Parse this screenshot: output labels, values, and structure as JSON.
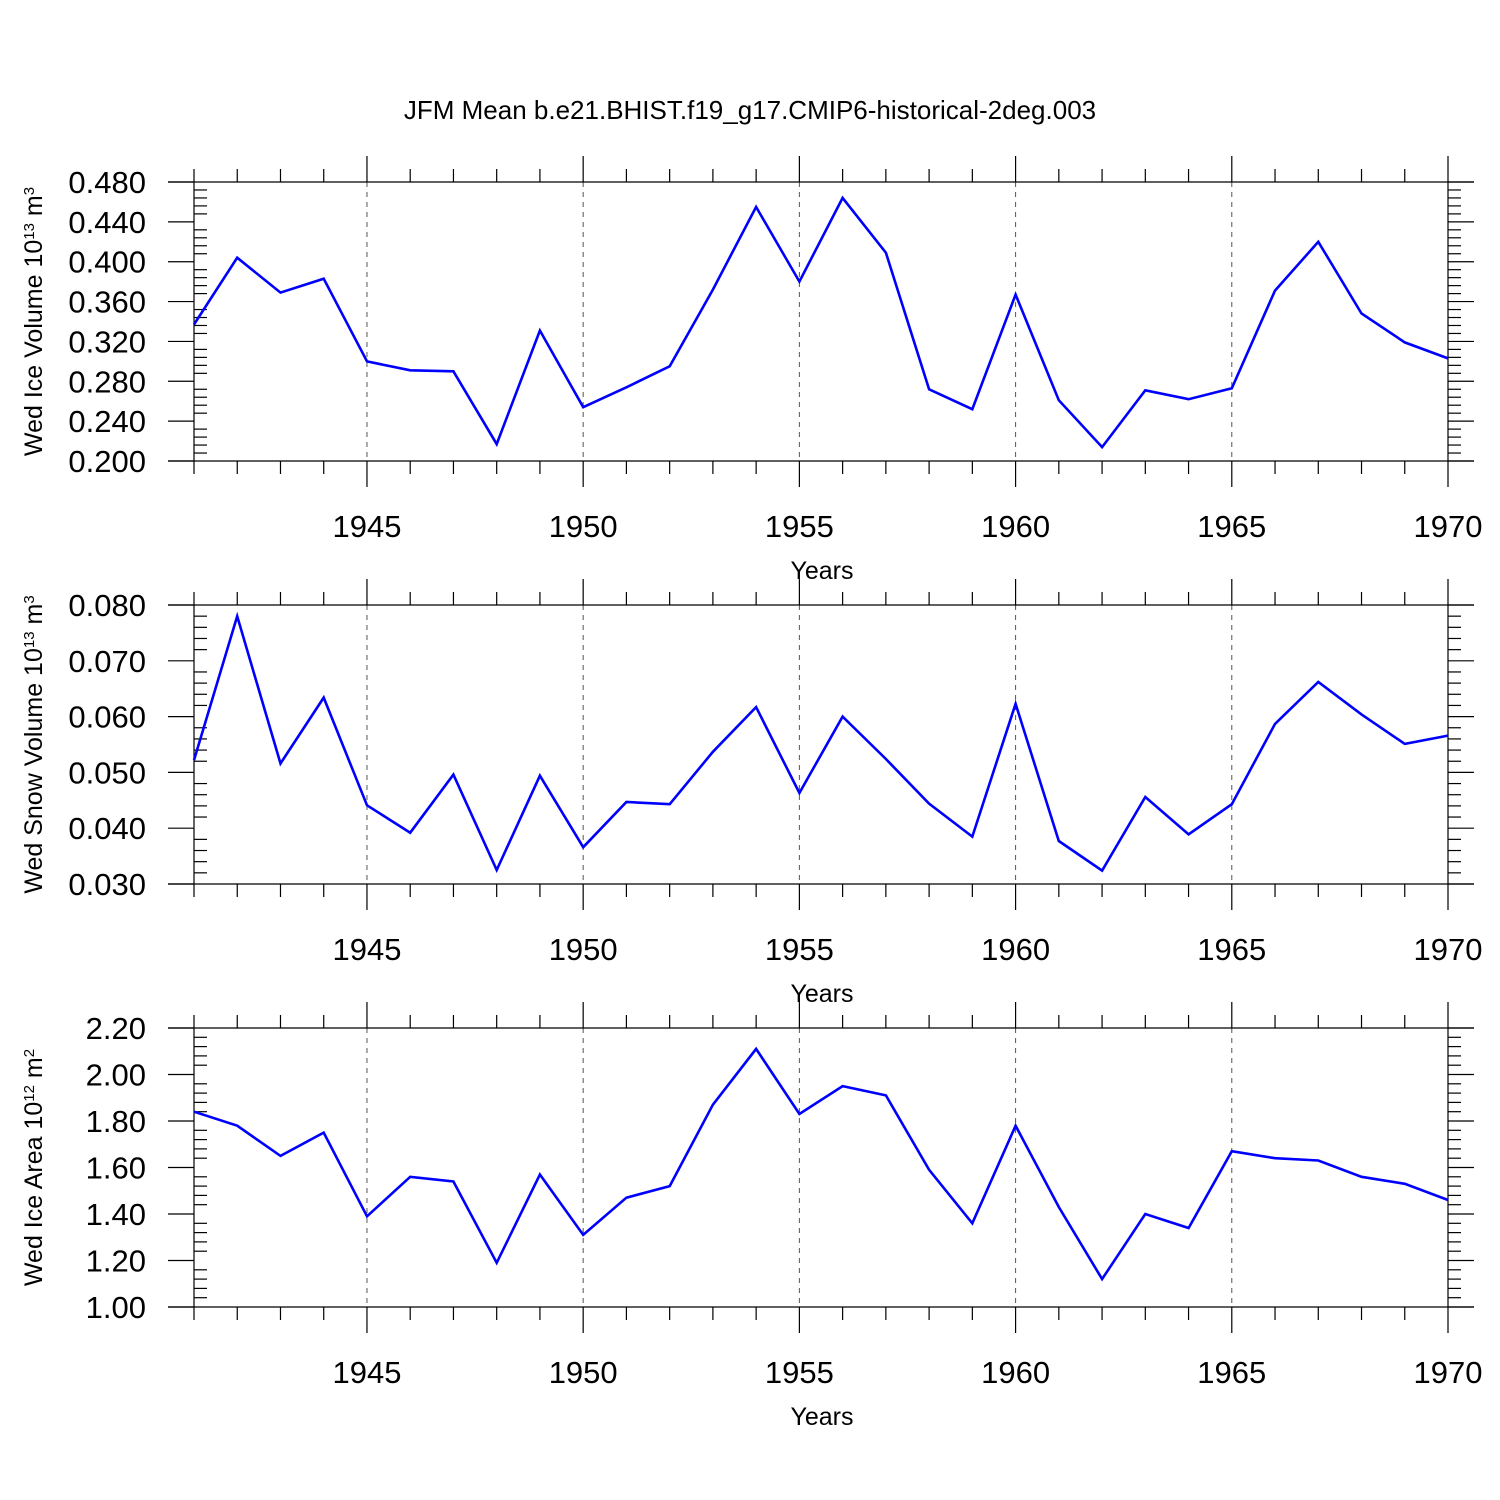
{
  "title": "JFM Mean b.e21.BHIST.f19_g17.CMIP6-historical-2deg.003",
  "colors": {
    "series": "#0000ff",
    "axis": "#000000",
    "grid": "#555555"
  },
  "chart_data": [
    {
      "type": "line",
      "ylabel": {
        "prefix": "Wed Ice Volume 10",
        "exp": "13",
        "unit": " m",
        "unit_exp": "3"
      },
      "xlabel": "Years",
      "xlim": [
        1941,
        1970
      ],
      "ylim": [
        0.2,
        0.48
      ],
      "yticks": [
        0.2,
        0.24,
        0.28,
        0.32,
        0.36,
        0.4,
        0.44,
        0.48
      ],
      "ytick_labels": [
        "0.200",
        "0.240",
        "0.280",
        "0.320",
        "0.360",
        "0.400",
        "0.440",
        "0.480"
      ],
      "xticks": [
        1945,
        1950,
        1955,
        1960,
        1965,
        1970
      ],
      "xtick_labels": [
        "1945",
        "1950",
        "1955",
        "1960",
        "1965",
        "1970"
      ],
      "x": [
        1941,
        1942,
        1943,
        1944,
        1945,
        1946,
        1947,
        1948,
        1949,
        1950,
        1951,
        1952,
        1953,
        1954,
        1955,
        1956,
        1957,
        1958,
        1959,
        1960,
        1961,
        1962,
        1963,
        1964,
        1965,
        1966,
        1967,
        1968,
        1969,
        1970
      ],
      "series": [
        {
          "name": "Wed Ice Volume",
          "values": [
            0.337,
            0.404,
            0.369,
            0.383,
            0.3,
            0.291,
            0.29,
            0.217,
            0.331,
            0.254,
            0.274,
            0.295,
            0.372,
            0.455,
            0.38,
            0.464,
            0.409,
            0.272,
            0.252,
            0.367,
            0.261,
            0.214,
            0.271,
            0.262,
            0.273,
            0.371,
            0.42,
            0.348,
            0.319,
            0.303
          ]
        }
      ]
    },
    {
      "type": "line",
      "ylabel": {
        "prefix": "Wed Snow Volume 10",
        "exp": "13",
        "unit": " m",
        "unit_exp": "3"
      },
      "xlabel": "Years",
      "xlim": [
        1941,
        1970
      ],
      "ylim": [
        0.03,
        0.08
      ],
      "yticks": [
        0.03,
        0.04,
        0.05,
        0.06,
        0.07,
        0.08
      ],
      "ytick_labels": [
        "0.030",
        "0.040",
        "0.050",
        "0.060",
        "0.070",
        "0.080"
      ],
      "xticks": [
        1945,
        1950,
        1955,
        1960,
        1965,
        1970
      ],
      "xtick_labels": [
        "1945",
        "1950",
        "1955",
        "1960",
        "1965",
        "1970"
      ],
      "x": [
        1941,
        1942,
        1943,
        1944,
        1945,
        1946,
        1947,
        1948,
        1949,
        1950,
        1951,
        1952,
        1953,
        1954,
        1955,
        1956,
        1957,
        1958,
        1959,
        1960,
        1961,
        1962,
        1963,
        1964,
        1965,
        1966,
        1967,
        1968,
        1969,
        1970
      ],
      "series": [
        {
          "name": "Wed Snow Volume",
          "values": [
            0.0522,
            0.078,
            0.0516,
            0.0634,
            0.0441,
            0.0392,
            0.0496,
            0.0325,
            0.0494,
            0.0366,
            0.0447,
            0.0443,
            0.0537,
            0.0617,
            0.0463,
            0.06,
            0.0524,
            0.0444,
            0.0385,
            0.0623,
            0.0377,
            0.0324,
            0.0456,
            0.0389,
            0.0443,
            0.0587,
            0.0662,
            0.0604,
            0.0551,
            0.0566
          ]
        }
      ]
    },
    {
      "type": "line",
      "ylabel": {
        "prefix": "Wed Ice Area 10",
        "exp": "12",
        "unit": " m",
        "unit_exp": "2"
      },
      "xlabel": "Years",
      "xlim": [
        1941,
        1970
      ],
      "ylim": [
        1.0,
        2.2
      ],
      "yticks": [
        1.0,
        1.2,
        1.4,
        1.6,
        1.8,
        2.0,
        2.2
      ],
      "ytick_labels": [
        "1.00",
        "1.20",
        "1.40",
        "1.60",
        "1.80",
        "2.00",
        "2.20"
      ],
      "xticks": [
        1945,
        1950,
        1955,
        1960,
        1965,
        1970
      ],
      "xtick_labels": [
        "1945",
        "1950",
        "1955",
        "1960",
        "1965",
        "1970"
      ],
      "x": [
        1941,
        1942,
        1943,
        1944,
        1945,
        1946,
        1947,
        1948,
        1949,
        1950,
        1951,
        1952,
        1953,
        1954,
        1955,
        1956,
        1957,
        1958,
        1959,
        1960,
        1961,
        1962,
        1963,
        1964,
        1965,
        1966,
        1967,
        1968,
        1969,
        1970
      ],
      "series": [
        {
          "name": "Wed Ice Area",
          "values": [
            1.84,
            1.78,
            1.65,
            1.75,
            1.39,
            1.56,
            1.54,
            1.19,
            1.57,
            1.31,
            1.47,
            1.52,
            1.87,
            2.11,
            1.83,
            1.95,
            1.91,
            1.59,
            1.36,
            1.78,
            1.43,
            1.12,
            1.4,
            1.34,
            1.67,
            1.64,
            1.63,
            1.56,
            1.53,
            1.46
          ]
        }
      ]
    }
  ]
}
